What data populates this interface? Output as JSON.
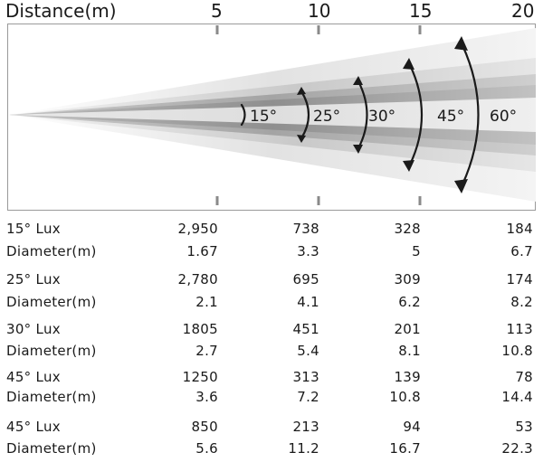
{
  "header": {
    "axis_label": "Distance(m)",
    "distances": [
      "5",
      "10",
      "15",
      "20"
    ]
  },
  "beam": {
    "angles": [
      "15°",
      "25°",
      "30°",
      "45°",
      "60°"
    ]
  },
  "table": {
    "rows": [
      {
        "label": "15° Lux",
        "values": [
          "2,950",
          "738",
          "328",
          "184"
        ]
      },
      {
        "label": "Diameter(m)",
        "values": [
          "1.67",
          "3.3",
          "5",
          "6.7"
        ]
      },
      {
        "label": "25° Lux",
        "values": [
          "2,780",
          "695",
          "309",
          "174"
        ]
      },
      {
        "label": "Diameter(m)",
        "values": [
          "2.1",
          "4.1",
          "6.2",
          "8.2"
        ]
      },
      {
        "label": "30° Lux",
        "values": [
          "1805",
          "451",
          "201",
          "113"
        ]
      },
      {
        "label": "Diameter(m)",
        "values": [
          "2.7",
          "5.4",
          "8.1",
          "10.8"
        ]
      },
      {
        "label": "45° Lux",
        "values": [
          "1250",
          "313",
          "139",
          "78"
        ]
      },
      {
        "label": "Diameter(m)",
        "values": [
          "3.6",
          "7.2",
          "10.8",
          "14.4"
        ]
      },
      {
        "label": "45° Lux",
        "values": [
          "850",
          "213",
          "94",
          "53"
        ]
      },
      {
        "label": "Diameter(m)",
        "values": [
          "5.6",
          "11.2",
          "16.7",
          "22.3"
        ]
      }
    ]
  }
}
